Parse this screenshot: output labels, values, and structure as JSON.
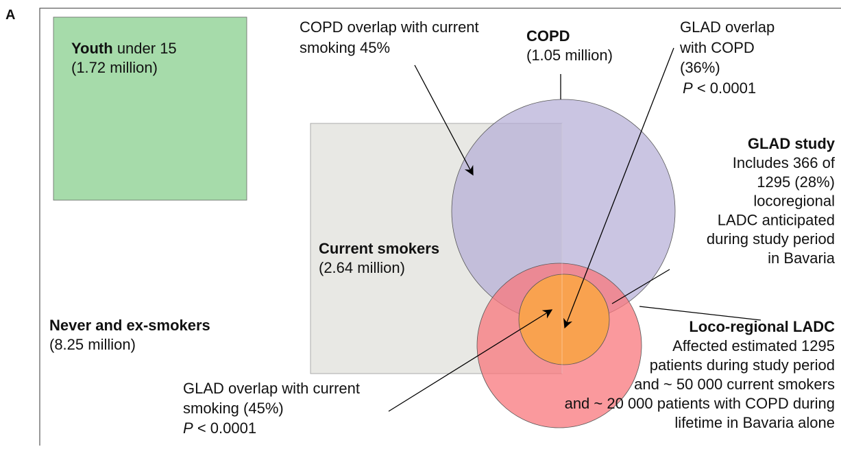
{
  "panel_label": "A",
  "labels": {
    "youth": {
      "bold": "Youth",
      "text": "under 15",
      "count": "(1.72 million)"
    },
    "copd": {
      "bold": "COPD",
      "count": "(1.05 million)"
    },
    "copd_overlap": {
      "lines": [
        "COPD overlap with current",
        "smoking 45%"
      ]
    },
    "glad_copd_overlap": {
      "lines": [
        "GLAD overlap",
        "with COPD",
        "(36%)"
      ],
      "p_italic": "P",
      "p_text": "< 0.0001"
    },
    "glad_study": {
      "bold": "GLAD study",
      "lines": [
        "Includes 366 of",
        "1295 (28%)",
        "locoregional",
        "LADC anticipated",
        "during study period",
        "in Bavaria"
      ]
    },
    "current_smokers": {
      "bold": "Current smokers",
      "count": "(2.64 million)"
    },
    "never": {
      "bold": "Never and ex-smokers",
      "count": "(8.25 million)"
    },
    "loco": {
      "bold": "Loco-regional LADC",
      "lines": [
        "Affected estimated 1295",
        "patients during study period",
        "and ~ 50 000 current smokers",
        "and ~ 20 000 patients with COPD during",
        "lifetime in Bavaria alone"
      ]
    },
    "glad_current_overlap": {
      "lines": [
        "GLAD overlap with current",
        "smoking (45%)"
      ],
      "p_italic": "P",
      "p_text": "< 0.0001"
    }
  }
}
